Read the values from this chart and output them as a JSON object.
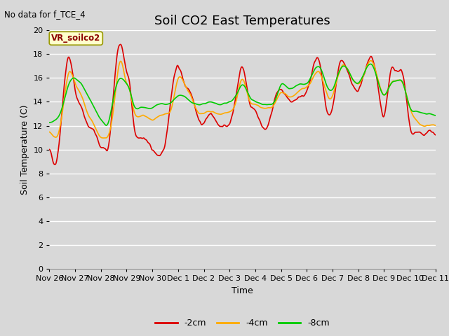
{
  "title": "Soil CO2 East Temperatures",
  "xlabel": "Time",
  "ylabel": "Soil Temperature (C)",
  "annotation_text": "No data for f_TCE_4",
  "legend_label_text": "VR_soilco2",
  "series_labels": [
    "-2cm",
    "-4cm",
    "-8cm"
  ],
  "series_colors": [
    "#dd0000",
    "#ffaa00",
    "#00cc00"
  ],
  "ylim": [
    0,
    20
  ],
  "yticks": [
    0,
    2,
    4,
    6,
    8,
    10,
    12,
    14,
    16,
    18,
    20
  ],
  "bg_color": "#d8d8d8",
  "plot_bg_color": "#d8d8d8",
  "grid_color": "#ffffff",
  "title_fontsize": 13,
  "axis_label_fontsize": 9,
  "tick_fontsize": 8,
  "x_tick_labels": [
    "Nov 26",
    "Nov 27",
    "Nov 28",
    "Nov 29",
    "Nov 30",
    "Dec 1",
    "Dec 2",
    "Dec 3",
    "Dec 4",
    "Dec 5",
    "Dec 6",
    "Dec 7",
    "Dec 8",
    "Dec 9",
    "Dec 10",
    "Dec 11"
  ],
  "x_tick_positions": [
    0,
    24,
    48,
    72,
    96,
    120,
    144,
    168,
    192,
    216,
    240,
    264,
    288,
    312,
    336,
    360
  ],
  "total_hours": 360,
  "red_ctrl_t": [
    0,
    3,
    6,
    9,
    12,
    18,
    24,
    27,
    30,
    36,
    42,
    48,
    51,
    54,
    60,
    66,
    72,
    75,
    78,
    84,
    90,
    96,
    102,
    108,
    114,
    120,
    126,
    132,
    138,
    144,
    150,
    156,
    162,
    168,
    174,
    180,
    186,
    192,
    198,
    204,
    210,
    216,
    222,
    228,
    234,
    240,
    246,
    252,
    258,
    264,
    270,
    276,
    282,
    288,
    294,
    300,
    306,
    312,
    318,
    324,
    330,
    336,
    342,
    348,
    354,
    360
  ],
  "red_ctrl_v": [
    10.0,
    9.2,
    8.8,
    10.5,
    13.5,
    17.8,
    15.0,
    14.0,
    13.5,
    12.0,
    11.5,
    10.2,
    10.1,
    9.8,
    15.0,
    19.0,
    16.5,
    15.5,
    12.5,
    11.0,
    10.8,
    10.0,
    9.5,
    10.5,
    14.8,
    17.0,
    15.5,
    14.8,
    12.8,
    12.2,
    13.0,
    12.2,
    12.0,
    12.2,
    14.5,
    17.0,
    14.2,
    13.2,
    12.0,
    12.0,
    14.2,
    15.0,
    14.2,
    14.0,
    14.5,
    14.8,
    17.0,
    17.2,
    13.5,
    13.5,
    17.0,
    17.0,
    15.5,
    15.0,
    16.5,
    17.8,
    15.5,
    12.8,
    16.5,
    16.5,
    16.2,
    12.0,
    11.5,
    11.2,
    11.5,
    11.0
  ],
  "orange_ctrl_t": [
    0,
    3,
    6,
    9,
    12,
    18,
    24,
    27,
    30,
    36,
    42,
    48,
    51,
    54,
    60,
    66,
    72,
    75,
    78,
    84,
    90,
    96,
    102,
    108,
    114,
    120,
    126,
    132,
    138,
    144,
    150,
    156,
    162,
    168,
    174,
    180,
    186,
    192,
    198,
    204,
    210,
    216,
    222,
    228,
    234,
    240,
    246,
    252,
    258,
    264,
    270,
    276,
    282,
    288,
    294,
    300,
    306,
    312,
    318,
    324,
    330,
    336,
    342,
    348,
    354,
    360
  ],
  "orange_ctrl_v": [
    11.5,
    11.2,
    11.0,
    11.5,
    13.0,
    16.5,
    15.5,
    15.0,
    14.5,
    13.0,
    12.0,
    11.0,
    11.0,
    11.0,
    13.5,
    17.5,
    15.5,
    15.0,
    13.5,
    12.8,
    12.8,
    12.5,
    12.8,
    13.0,
    13.5,
    16.0,
    15.5,
    14.5,
    13.2,
    13.0,
    13.2,
    13.0,
    13.0,
    13.2,
    14.0,
    16.0,
    14.2,
    13.8,
    13.5,
    13.5,
    13.8,
    14.8,
    14.5,
    14.5,
    15.0,
    15.2,
    16.0,
    16.5,
    14.8,
    14.5,
    16.5,
    17.0,
    16.0,
    15.5,
    16.5,
    17.5,
    16.0,
    14.5,
    15.5,
    15.8,
    15.5,
    13.5,
    12.5,
    12.0,
    12.0,
    12.0
  ],
  "green_ctrl_t": [
    0,
    3,
    6,
    9,
    12,
    18,
    24,
    27,
    30,
    36,
    42,
    48,
    51,
    54,
    60,
    66,
    72,
    75,
    78,
    84,
    90,
    96,
    102,
    108,
    114,
    120,
    126,
    132,
    138,
    144,
    150,
    156,
    162,
    168,
    174,
    180,
    186,
    192,
    198,
    204,
    210,
    216,
    222,
    228,
    234,
    240,
    246,
    252,
    258,
    264,
    270,
    276,
    282,
    288,
    294,
    300,
    306,
    312,
    318,
    324,
    330,
    336,
    342,
    348,
    354,
    360
  ],
  "green_ctrl_v": [
    12.2,
    12.3,
    12.5,
    12.8,
    13.5,
    15.5,
    16.0,
    15.8,
    15.5,
    14.5,
    13.5,
    12.5,
    12.2,
    12.0,
    14.5,
    16.0,
    15.5,
    15.0,
    13.8,
    13.5,
    13.5,
    13.5,
    13.8,
    13.8,
    14.0,
    14.5,
    14.5,
    14.0,
    13.8,
    13.8,
    14.0,
    13.8,
    13.8,
    14.0,
    14.5,
    15.5,
    14.5,
    14.0,
    13.8,
    13.8,
    14.0,
    15.5,
    15.2,
    15.2,
    15.5,
    15.5,
    16.5,
    17.0,
    15.5,
    15.0,
    16.5,
    17.0,
    16.0,
    15.5,
    16.5,
    17.2,
    15.8,
    14.5,
    15.5,
    15.8,
    15.5,
    13.5,
    13.2,
    13.0,
    13.0,
    12.8
  ]
}
